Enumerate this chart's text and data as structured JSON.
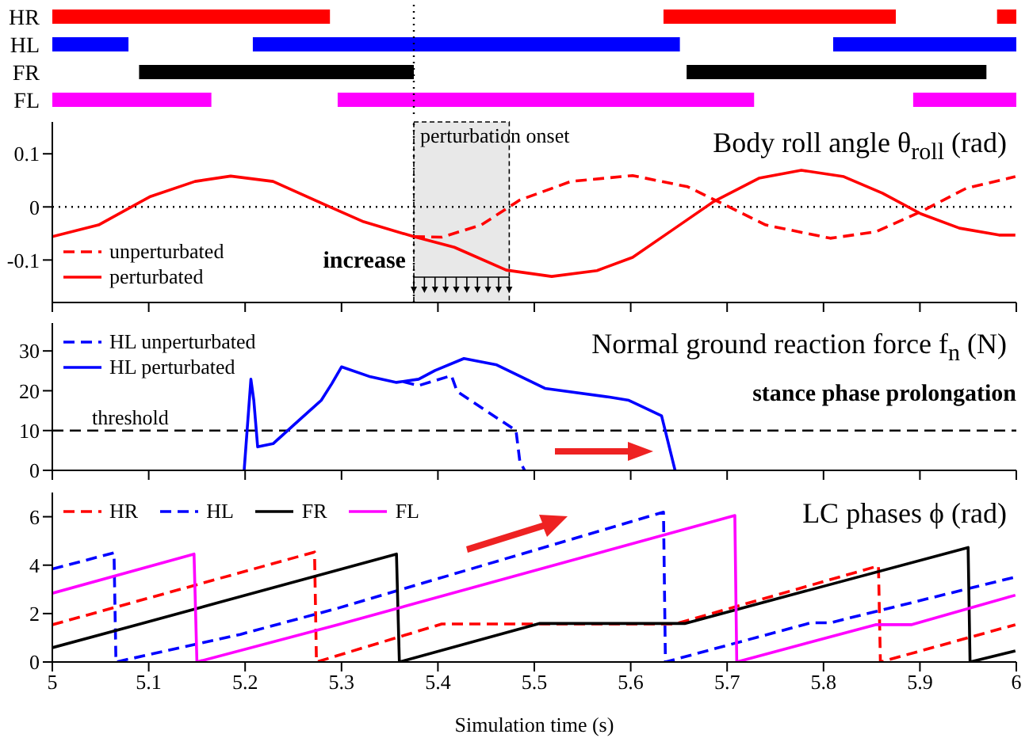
{
  "chart_data": [
    {
      "type": "bar",
      "orientation": "horizontal",
      "categories": [
        "HR",
        "HL",
        "FR",
        "FL"
      ],
      "xlim": [
        5,
        6
      ],
      "tick_labels": "y",
      "series": [
        {
          "base": [
            5,
            5,
            5.09,
            5
          ],
          "values": [
            0.288,
            0.079,
            0.285,
            0.165
          ],
          "colors": [
            "#ff0000",
            "#0000ff",
            "#000000",
            "#ff00ff"
          ]
        },
        {
          "base": [
            5.634,
            5.208,
            5.658,
            5.296
          ],
          "values": [
            0.241,
            0.443,
            0.311,
            0.432
          ],
          "colors": [
            "#ff0000",
            "#0000ff",
            "#000000",
            "#ff00ff"
          ]
        },
        {
          "base": [
            5.98,
            5.81,
            null,
            5.893
          ],
          "values": [
            0.02,
            0.19,
            null,
            0.107
          ],
          "colors": [
            "#ff0000",
            "#0000ff",
            "#000000",
            "#ff00ff"
          ]
        }
      ],
      "ref_lines": [
        {
          "axis": "x",
          "value": 5.375,
          "line_style": "dotted",
          "color": "#000000"
        }
      ]
    },
    {
      "type": "line",
      "title": "Body roll angle θ$_{roll}$ (rad)",
      "xlim": [
        5,
        6
      ],
      "xticks": [
        5,
        5.1,
        5.2,
        5.3,
        5.4,
        5.5,
        5.6,
        5.7,
        5.8,
        5.9,
        6
      ],
      "ylim": [
        -0.18,
        0.16
      ],
      "yticks": [
        -0.1,
        0,
        0.1
      ],
      "tick_labels": "y",
      "legend": "bottom left",
      "series": [
        {
          "name": "unperturbated",
          "color": "#ff0000",
          "line_style": "dashed",
          "x": [
            5.375,
            5.404,
            5.445,
            5.485,
            5.538,
            5.602,
            5.659,
            5.693,
            5.74,
            5.807,
            5.854,
            5.901,
            5.948,
            5.999
          ],
          "values": [
            -0.056,
            -0.057,
            -0.034,
            0.013,
            0.048,
            0.059,
            0.038,
            0.008,
            -0.034,
            -0.059,
            -0.047,
            -0.009,
            0.035,
            0.057
          ]
        },
        {
          "name": "perturbated",
          "color": "#ff0000",
          "line_style": "solid",
          "x": [
            5.0,
            5.048,
            5.101,
            5.148,
            5.185,
            5.229,
            5.283,
            5.323,
            5.375,
            5.417,
            5.471,
            5.518,
            5.565,
            5.602,
            5.646,
            5.686,
            5.733,
            5.777,
            5.821,
            5.861,
            5.901,
            5.941,
            5.982,
            5.999
          ],
          "values": [
            -0.056,
            -0.034,
            0.019,
            0.048,
            0.058,
            0.048,
            0.004,
            -0.028,
            -0.056,
            -0.076,
            -0.119,
            -0.131,
            -0.12,
            -0.095,
            -0.04,
            0.01,
            0.054,
            0.069,
            0.057,
            0.026,
            -0.013,
            -0.04,
            -0.053,
            -0.053
          ]
        }
      ],
      "ref_lines": [
        {
          "axis": "y",
          "value": 0,
          "line_style": "dotted",
          "color": "#000000"
        },
        {
          "axis": "x",
          "value": 5.375,
          "line_style": "dotted",
          "color": "#000000",
          "label": "perturbation onset"
        }
      ],
      "bands": [
        {
          "axis": "x",
          "from": 5.375,
          "to": 5.474,
          "color": "#e8e8e8"
        }
      ],
      "annotations": [
        {
          "text": "increase",
          "x": 5.37,
          "y": -0.1
        }
      ]
    },
    {
      "type": "line",
      "title": "Normal ground reaction force f$_{n}$ (N)",
      "xlim": [
        5,
        6
      ],
      "xticks": [
        5,
        5.1,
        5.2,
        5.3,
        5.4,
        5.5,
        5.6,
        5.7,
        5.8,
        5.9,
        6
      ],
      "ylim": [
        0,
        37
      ],
      "yticks": [
        0,
        10,
        20,
        30
      ],
      "tick_labels": "y",
      "legend": "top left",
      "series": [
        {
          "name": "HL unperturbated",
          "color": "#0000ff",
          "line_style": "dashed",
          "x": [
            5.364,
            5.38,
            5.414,
            5.42,
            5.481,
            5.485,
            5.49
          ],
          "values": [
            22.3,
            21.3,
            23.8,
            19.8,
            10,
            2.2,
            0
          ]
        },
        {
          "name": "HL perturbated",
          "color": "#0000ff",
          "line_style": "solid",
          "x": [
            5.199,
            5.206,
            5.209,
            5.213,
            5.229,
            5.256,
            5.279,
            5.29,
            5.3,
            5.33,
            5.357,
            5.38,
            5.397,
            5.427,
            5.461,
            5.511,
            5.578,
            5.598,
            5.632,
            5.646
          ],
          "values": [
            0,
            22.9,
            17.6,
            5.9,
            6.7,
            12.6,
            17.6,
            21.8,
            26,
            23.5,
            22.1,
            22.9,
            25.1,
            28.1,
            26.5,
            20.6,
            18.4,
            17.6,
            13.7,
            0
          ]
        }
      ],
      "ref_lines": [
        {
          "axis": "y",
          "value": 10,
          "line_style": "dashed",
          "color": "#000000",
          "label": "threshold"
        }
      ],
      "annotations": [
        "stance phase prolongation"
      ]
    },
    {
      "type": "line",
      "title": "LC phases ϕ (rad)",
      "xlabel": "Simulation time (s)",
      "xlim": [
        5,
        6
      ],
      "xticks": [
        5,
        5.1,
        5.2,
        5.3,
        5.4,
        5.5,
        5.6,
        5.7,
        5.8,
        5.9,
        6
      ],
      "ylim": [
        0,
        7
      ],
      "yticks": [
        0,
        2,
        4,
        6
      ],
      "legend": "top left",
      "series": [
        {
          "name": "HR",
          "color": "#ff0000",
          "line_style": "dashed",
          "x": [
            5.0,
            5.272,
            5.274,
            5.404,
            5.646,
            5.857,
            5.859,
            5.999
          ],
          "values": [
            1.54,
            4.54,
            0,
            1.57,
            1.57,
            3.97,
            0,
            1.54
          ]
        },
        {
          "name": "HL",
          "color": "#0000ff",
          "line_style": "dashed",
          "x": [
            5.0,
            5.064,
            5.066,
            5.195,
            5.296,
            5.634,
            5.636,
            5.787,
            5.807,
            5.999
          ],
          "values": [
            3.84,
            4.51,
            0,
            1.14,
            2.22,
            6.19,
            0,
            1.62,
            1.62,
            3.51
          ]
        },
        {
          "name": "FR",
          "color": "#000000",
          "line_style": "solid",
          "x": [
            5.0,
            5.088,
            5.357,
            5.36,
            5.505,
            5.656,
            5.95,
            5.952,
            5.999
          ],
          "values": [
            0.59,
            1.54,
            4.46,
            0,
            1.59,
            1.59,
            4.73,
            0,
            0.46
          ]
        },
        {
          "name": "FL",
          "color": "#ff00ff",
          "line_style": "solid",
          "x": [
            5.0,
            5.147,
            5.15,
            5.296,
            5.708,
            5.71,
            5.854,
            5.891,
            5.999
          ],
          "values": [
            2.84,
            4.46,
            0,
            1.54,
            6.05,
            0,
            1.54,
            1.54,
            2.76
          ]
        }
      ]
    }
  ]
}
